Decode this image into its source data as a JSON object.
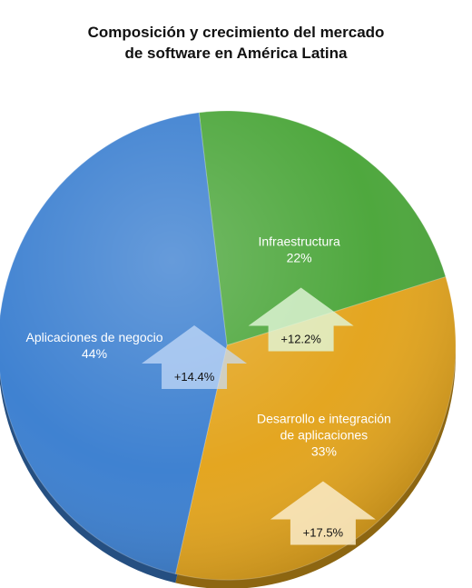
{
  "chart_data": {
    "type": "pie",
    "title_lines": [
      "Composición y crecimiento del mercado",
      "de software en América Latina"
    ],
    "slices": [
      {
        "label_lines": [
          "Infraestructura"
        ],
        "value": 22,
        "value_label": "22%",
        "growth_label": "+12.2%",
        "color": "#4ba63a"
      },
      {
        "label_lines": [
          "Desarrollo e integración",
          "de aplicaciones"
        ],
        "value": 33,
        "value_label": "33%",
        "growth_label": "+17.5%",
        "color": "#e3a41c"
      },
      {
        "label_lines": [
          "Aplicaciones de negocio"
        ],
        "value": 44,
        "value_label": "44%",
        "growth_label": "+14.4%",
        "color": "#3b7fd0"
      }
    ],
    "legend": "none"
  }
}
